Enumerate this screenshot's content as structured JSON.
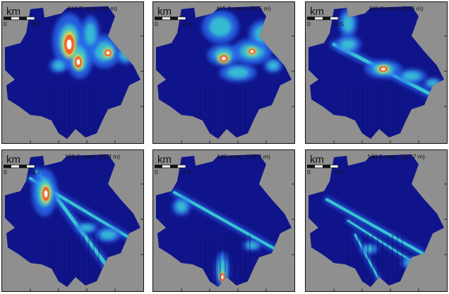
{
  "scale_bar": {
    "unit": "km",
    "tick_start": "0",
    "tick_end": "0.5"
  },
  "panels": [
    {
      "title": "110.7 msec (83 m)"
    },
    {
      "title": "115.4 msec (86.5 m)"
    },
    {
      "title": "119.8 msec (89.8 m)"
    },
    {
      "title": "129.2 msec (95.9 m)"
    },
    {
      "title": "146 msec (109.3 m)"
    },
    {
      "title": "148.9 msec (111.7 m)"
    }
  ],
  "colors": {
    "background": "#8f8f8f",
    "field": "#10148a",
    "low": "#2a6cf0",
    "mid": "#3cdcd0",
    "high": "#f0e040",
    "peak": "#ff5020",
    "max": "#ffffff"
  }
}
